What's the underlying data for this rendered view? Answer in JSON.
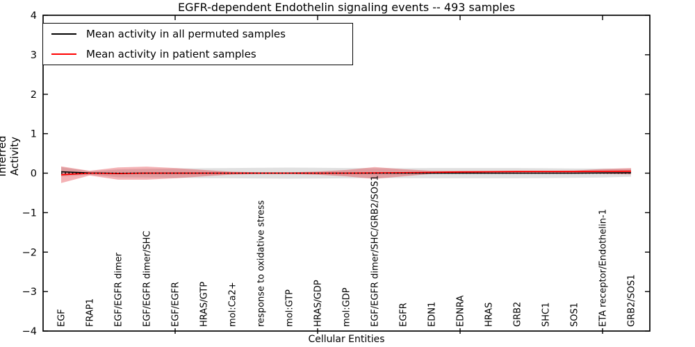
{
  "title": "EGFR-dependent Endothelin signaling events -- 493 samples",
  "axes": {
    "ylabel": "Inferred Activity",
    "xlabel": "Cellular Entities",
    "ytick_labels": [
      "4",
      "3",
      "2",
      "1",
      "0",
      "−1",
      "−2",
      "−3",
      "−4"
    ]
  },
  "legend": {
    "items": [
      {
        "label": "Mean activity in all permuted samples",
        "color": "#000000"
      },
      {
        "label": "Mean activity in patient samples",
        "color": "#ff0000"
      }
    ]
  },
  "chart_data": {
    "type": "line",
    "title": "EGFR-dependent Endothelin signaling events -- 493 samples",
    "xlabel": "Cellular Entities",
    "ylabel": "Inferred Activity",
    "ylim": [
      -4,
      4
    ],
    "yticks": [
      4,
      3,
      2,
      1,
      0,
      -1,
      -2,
      -3,
      -4
    ],
    "grid": false,
    "legend_position": "upper left",
    "categories": [
      "EGF",
      "FRAP1",
      "EGF/EGFR dimer",
      "EGF/EGFR dimer/SHC",
      "EGF/EGFR",
      "HRAS/GTP",
      "mol:Ca2+",
      "response to oxidative stress",
      "mol:GTP",
      "HRAS/GDP",
      "mol:GDP",
      "EGF/EGFR dimer/SHC/GRB2/SOS1",
      "EGFR",
      "EDN1",
      "EDNRA",
      "HRAS",
      "GRB2",
      "SHC1",
      "SOS1",
      "ETA receptor/Endothelin-1",
      "GRB2/SOS1"
    ],
    "xticks_major_at_category_numbers": [
      5,
      10,
      15,
      20
    ],
    "zero_line": {
      "y": 0,
      "style": "dotted",
      "color": "#000000"
    },
    "series": [
      {
        "name": "Mean activity in all permuted samples",
        "line_color": "#000000",
        "band_fill": "rgba(0,0,0,0.12)",
        "values": [
          0.035,
          0.005,
          -0.005,
          0.0,
          0.0,
          0.0,
          0.0,
          0.0,
          0.0,
          0.0,
          0.0,
          0.0,
          0.0,
          0.0,
          0.0,
          0.0,
          0.0,
          0.0,
          0.0,
          0.005,
          0.01
        ],
        "band_halfwidth": [
          0.12,
          0.045,
          0.1,
          0.11,
          0.12,
          0.125,
          0.13,
          0.135,
          0.14,
          0.135,
          0.13,
          0.125,
          0.125,
          0.13,
          0.13,
          0.13,
          0.13,
          0.125,
          0.12,
          0.115,
          0.1
        ]
      },
      {
        "name": "Mean activity in patient samples",
        "line_color": "#ff0000",
        "band_fill": "rgba(222,22,30,0.33)",
        "values": [
          -0.04,
          0.0,
          -0.01,
          0.0,
          0.0,
          0.0,
          0.0,
          0.0,
          0.0,
          0.0,
          0.0,
          0.005,
          0.01,
          0.02,
          0.03,
          0.035,
          0.04,
          0.04,
          0.04,
          0.045,
          0.05
        ],
        "band_halfwidth": [
          0.21,
          0.06,
          0.155,
          0.165,
          0.13,
          0.08,
          0.035,
          0.02,
          0.02,
          0.04,
          0.08,
          0.15,
          0.09,
          0.04,
          0.025,
          0.02,
          0.02,
          0.02,
          0.025,
          0.06,
          0.08
        ]
      }
    ]
  }
}
